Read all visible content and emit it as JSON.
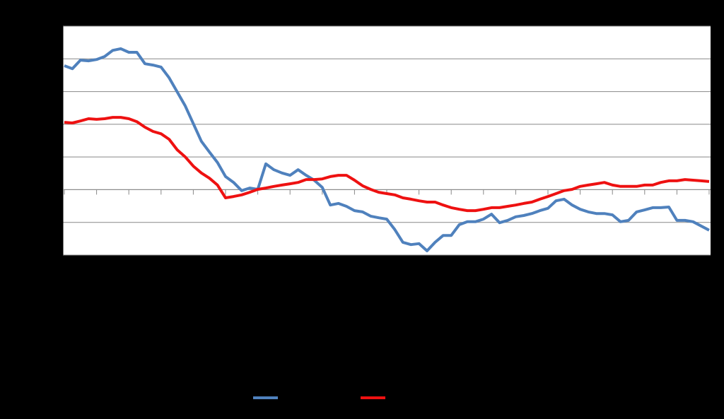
{
  "chart_data": {
    "type": "line",
    "x": [
      0,
      1,
      2,
      3,
      4,
      5,
      6,
      7,
      8,
      9,
      10,
      11,
      12,
      13,
      14,
      15,
      16,
      17,
      18,
      19,
      20,
      21,
      22,
      23,
      24,
      25,
      26,
      27,
      28,
      29,
      30,
      31,
      32,
      33,
      34,
      35,
      36,
      37,
      38,
      39,
      40,
      41,
      42,
      43,
      44,
      45,
      46,
      47,
      48,
      49,
      50,
      51,
      52,
      53,
      54,
      55,
      56,
      57,
      58,
      59,
      60,
      61,
      62,
      63,
      64,
      65,
      66,
      67,
      68,
      69,
      70,
      71,
      72,
      73,
      74,
      75,
      76,
      77,
      78,
      79,
      80
    ],
    "xlim": [
      0,
      80
    ],
    "xticks": [
      0,
      4,
      8,
      12,
      16,
      20,
      24,
      28,
      32,
      36,
      40,
      44,
      48,
      52,
      56,
      60,
      64,
      68,
      72,
      76,
      80
    ],
    "xaxis_crosses": 2,
    "ylim": [
      0,
      7
    ],
    "yticks": [
      0,
      1,
      2,
      3,
      4,
      5,
      6,
      7
    ],
    "grid": true,
    "series": [
      {
        "color": "#4f81bd",
        "values": [
          5.79,
          5.7,
          5.96,
          5.94,
          5.98,
          6.07,
          6.26,
          6.31,
          6.2,
          6.2,
          5.85,
          5.81,
          5.75,
          5.42,
          4.99,
          4.56,
          4.02,
          3.48,
          3.15,
          2.83,
          2.4,
          2.22,
          1.97,
          2.05,
          2.01,
          2.79,
          2.61,
          2.51,
          2.44,
          2.61,
          2.44,
          2.29,
          2.07,
          1.53,
          1.58,
          1.49,
          1.36,
          1.32,
          1.19,
          1.14,
          1.1,
          0.78,
          0.39,
          0.32,
          0.35,
          0.13,
          0.39,
          0.6,
          0.6,
          0.93,
          1.02,
          1.02,
          1.1,
          1.25,
          0.99,
          1.06,
          1.17,
          1.21,
          1.27,
          1.36,
          1.43,
          1.66,
          1.71,
          1.53,
          1.4,
          1.32,
          1.27,
          1.27,
          1.23,
          1.02,
          1.06,
          1.32,
          1.38,
          1.45,
          1.45,
          1.47,
          1.06,
          1.06,
          1.02,
          0.89,
          0.76
        ]
      },
      {
        "color": "#ee1111",
        "values": [
          4.06,
          4.04,
          4.1,
          4.17,
          4.15,
          4.17,
          4.21,
          4.21,
          4.17,
          4.08,
          3.91,
          3.78,
          3.71,
          3.54,
          3.22,
          3.0,
          2.72,
          2.51,
          2.35,
          2.14,
          1.75,
          1.79,
          1.84,
          1.92,
          2.01,
          2.05,
          2.1,
          2.14,
          2.18,
          2.22,
          2.31,
          2.31,
          2.33,
          2.4,
          2.44,
          2.44,
          2.29,
          2.12,
          2.01,
          1.92,
          1.88,
          1.84,
          1.75,
          1.71,
          1.66,
          1.62,
          1.62,
          1.53,
          1.45,
          1.4,
          1.36,
          1.36,
          1.4,
          1.45,
          1.45,
          1.49,
          1.53,
          1.58,
          1.62,
          1.71,
          1.79,
          1.88,
          1.97,
          2.01,
          2.1,
          2.14,
          2.18,
          2.22,
          2.14,
          2.1,
          2.1,
          2.1,
          2.14,
          2.14,
          2.22,
          2.27,
          2.27,
          2.31,
          2.29,
          2.27,
          2.25
        ]
      }
    ]
  }
}
